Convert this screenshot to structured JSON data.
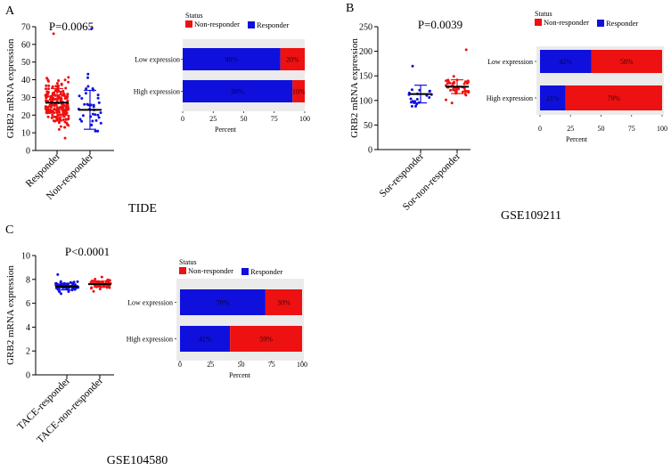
{
  "colors": {
    "responder": "#1010dd",
    "non_responder": "#ee1111",
    "panel_bg": "#ebebeb",
    "mean_bar": "#000000"
  },
  "chart_data": [
    {
      "id": "A",
      "panel_letter": "A",
      "dataset": "TIDE",
      "scatter": {
        "type": "scatter",
        "p_value": "P=0.0065",
        "ylabel": "GRB2 mRNA expression",
        "ylim": [
          0,
          70
        ],
        "yticks": [
          0,
          10,
          20,
          30,
          40,
          50,
          60,
          70
        ],
        "groups": [
          {
            "name": "Responder",
            "color_key": "non_responder",
            "mean": 27,
            "sd": 8,
            "n": 220,
            "min": 7,
            "max": 66,
            "seed": 11
          },
          {
            "name": "Non-responder",
            "color_key": "responder",
            "mean": 23,
            "sd": 11,
            "n": 40,
            "min": 11,
            "max": 69,
            "seed": 23
          }
        ]
      },
      "bars": {
        "type": "bar",
        "legend_title": "Status",
        "legend": [
          "Non-responder",
          "Responder"
        ],
        "xlabel": "Percent",
        "xticks": [
          0,
          25,
          50,
          75,
          100
        ],
        "rows": [
          {
            "label": "Low expression",
            "responder": 80,
            "non_responder": 20,
            "responder_label": "80%",
            "non_responder_label": "20%"
          },
          {
            "label": "High expression",
            "responder": 90,
            "non_responder": 10,
            "responder_label": "90%",
            "non_responder_label": "10%"
          }
        ]
      }
    },
    {
      "id": "B",
      "panel_letter": "B",
      "dataset": "GSE109211",
      "scatter": {
        "type": "scatter",
        "p_value": "P=0.0039",
        "ylabel": "GRB2 mRNA expression",
        "ylim": [
          0,
          250
        ],
        "yticks": [
          0,
          50,
          100,
          150,
          200,
          250
        ],
        "groups": [
          {
            "name": "Sor-responder",
            "color_key": "responder",
            "mean": 113,
            "sd": 18,
            "n": 21,
            "min": 88,
            "max": 170,
            "seed": 37
          },
          {
            "name": "Sor-non-responder",
            "color_key": "non_responder",
            "mean": 128,
            "sd": 14,
            "n": 46,
            "min": 95,
            "max": 203,
            "seed": 41
          }
        ]
      },
      "bars": {
        "type": "bar",
        "legend_title": "Status",
        "legend": [
          "Non-responder",
          "Responder"
        ],
        "xlabel": "Percent",
        "xticks": [
          0,
          25,
          50,
          75,
          100
        ],
        "rows": [
          {
            "label": "Low expression",
            "responder": 42,
            "non_responder": 58,
            "responder_label": "42%",
            "non_responder_label": "58%"
          },
          {
            "label": "High expression",
            "responder": 21,
            "non_responder": 79,
            "responder_label": "21%",
            "non_responder_label": "79%"
          }
        ]
      }
    },
    {
      "id": "C",
      "panel_letter": "C",
      "dataset": "GSE104580",
      "scatter": {
        "type": "scatter",
        "p_value": "P<0.0001",
        "ylabel": "GRB2 mRNA expression",
        "ylim": [
          0,
          10
        ],
        "yticks": [
          0,
          2,
          4,
          6,
          8,
          10
        ],
        "groups": [
          {
            "name": "TACE-responder",
            "color_key": "responder",
            "mean": 7.4,
            "sd": 0.28,
            "n": 81,
            "min": 6.8,
            "max": 8.4,
            "seed": 53
          },
          {
            "name": "TACE-non-responder",
            "color_key": "non_responder",
            "mean": 7.6,
            "sd": 0.25,
            "n": 66,
            "min": 7.0,
            "max": 8.2,
            "seed": 61
          }
        ]
      },
      "bars": {
        "type": "bar",
        "legend_title": "Status",
        "legend": [
          "Non-responder",
          "Responder"
        ],
        "xlabel": "Percent",
        "xticks": [
          0,
          25,
          50,
          75,
          100
        ],
        "rows": [
          {
            "label": "Low expression",
            "responder": 70,
            "non_responder": 30,
            "responder_label": "70%",
            "non_responder_label": "30%"
          },
          {
            "label": "High expression",
            "responder": 41,
            "non_responder": 59,
            "responder_label": "41%",
            "non_responder_label": "59%"
          }
        ]
      }
    }
  ]
}
